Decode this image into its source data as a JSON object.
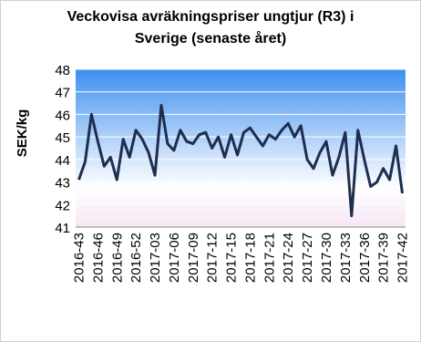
{
  "chart_data": {
    "type": "line",
    "title": "Veckovisa avräkningspriser ungtjur (R3) i Sverige (senaste året)",
    "y_label": "SEK/kg",
    "categories": [
      "2016-43",
      null,
      null,
      "2016-46",
      null,
      null,
      "2016-49",
      null,
      null,
      "2016-52",
      null,
      null,
      "2017-03",
      null,
      null,
      "2017-06",
      null,
      null,
      "2017-09",
      null,
      null,
      "2017-12",
      null,
      null,
      "2017-15",
      null,
      null,
      "2017-18",
      null,
      null,
      "2017-21",
      null,
      null,
      "2017-24",
      null,
      null,
      "2017-27",
      null,
      null,
      "2017-30",
      null,
      null,
      "2017-33",
      null,
      null,
      "2017-36",
      null,
      null,
      "2017-39",
      null,
      null,
      "2017-42"
    ],
    "series": [
      {
        "name": "SEK/kg",
        "color": "#1f2d4e",
        "values": [
          43.1,
          43.9,
          46.0,
          44.8,
          43.7,
          44.1,
          43.1,
          44.9,
          44.1,
          45.3,
          44.9,
          44.3,
          43.3,
          46.4,
          44.7,
          44.4,
          45.3,
          44.8,
          44.7,
          45.1,
          45.2,
          44.5,
          45.0,
          44.1,
          45.1,
          44.2,
          45.2,
          45.4,
          45.0,
          44.6,
          45.1,
          44.9,
          45.3,
          45.6,
          45.0,
          45.5,
          44.0,
          43.6,
          44.3,
          44.8,
          43.3,
          44.1,
          45.2,
          41.5,
          45.3,
          44.0,
          42.8,
          43.0,
          43.6,
          43.1,
          44.6,
          42.5
        ]
      }
    ],
    "ylim": [
      41,
      48
    ],
    "yticks": [
      41,
      42,
      43,
      44,
      45,
      46,
      47,
      48
    ],
    "grid": true
  }
}
